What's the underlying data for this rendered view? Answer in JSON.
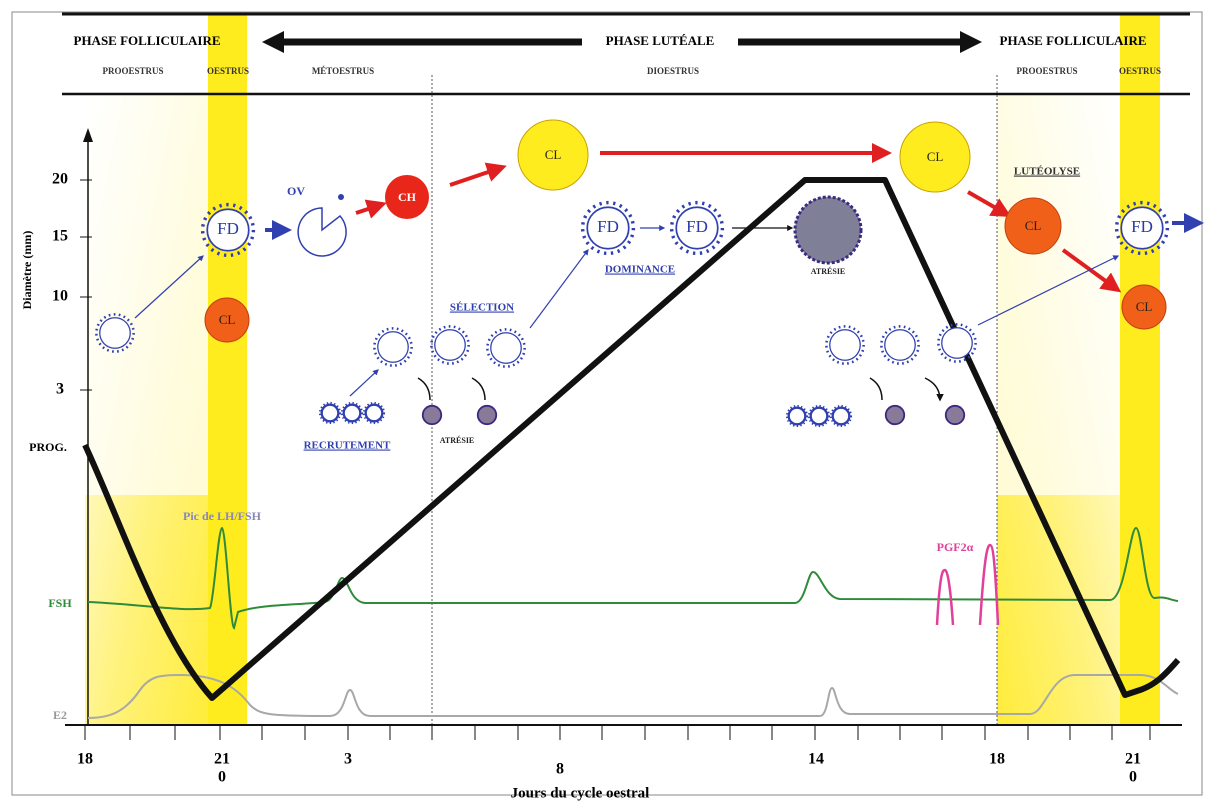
{
  "header": {
    "phases": [
      "PHASE FOLLICULAIRE",
      "PHASE LUTÉALE",
      "PHASE FOLLICULAIRE"
    ],
    "subphases": [
      "PROOESTRUS",
      "OESTRUS",
      "MÉTOESTRUS",
      "DIOESTRUS",
      "PROOESTRUS",
      "OESTRUS"
    ]
  },
  "y_axis": {
    "title": "Diamètre (mm)",
    "ticks": [
      "20",
      "15",
      "10",
      "3"
    ],
    "baseline": "PROG."
  },
  "follicles": {
    "fd": [
      "FD",
      "FD",
      "FD",
      "FD"
    ],
    "ov": "OV",
    "ch": "CH",
    "cl": [
      "CL",
      "CL",
      "CL",
      "CL",
      "CL"
    ]
  },
  "annotations": {
    "luteolysis": "LUTÉOLYSE",
    "dominance": "DOMINANCE",
    "selection": "SÉLECTION",
    "recruitment": "RECRUTEMENT",
    "atresia": [
      "ATRÉSIE",
      "ATRÉSIE"
    ],
    "lh_peak": "Pic de LH/FSH",
    "pgf": "PGF2α"
  },
  "hormones": {
    "fsh": "FSH",
    "e2": "E2"
  },
  "x_axis": {
    "title": "Jours du cycle oestral",
    "days": [
      "18",
      "21",
      "3",
      "8",
      "14",
      "18",
      "21"
    ],
    "zero_days": [
      "0",
      "0"
    ]
  }
}
